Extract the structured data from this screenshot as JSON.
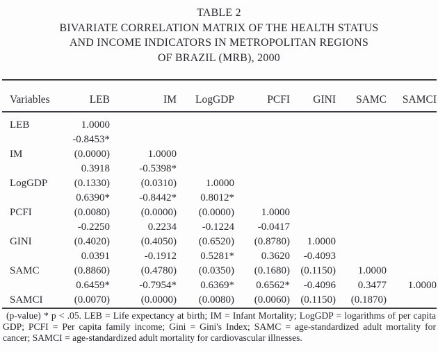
{
  "title": {
    "lines": [
      "TABLE 2",
      "BIVARIATE CORRELATION MATRIX OF THE HEALTH STATUS",
      "AND INCOME INDICATORS IN METROPOLITAN REGIONS",
      "OF BRAZIL (MRB), 2000"
    ]
  },
  "table": {
    "headers": [
      "Variables",
      "LEB",
      "IM",
      "LogGDP",
      "PCFI",
      "GINI",
      "SAMC",
      "SAMCI"
    ],
    "rows": [
      {
        "label": "LEB",
        "cells": [
          "1.0000",
          "",
          "",
          "",
          "",
          "",
          ""
        ]
      },
      {
        "label": "",
        "cells": [
          "-0.8453*",
          "",
          "",
          "",
          "",
          "",
          ""
        ]
      },
      {
        "label": "IM",
        "cells": [
          "(0.0000)",
          "1.0000",
          "",
          "",
          "",
          "",
          ""
        ]
      },
      {
        "label": "",
        "cells": [
          "0.3918",
          "-0.5398*",
          "",
          "",
          "",
          "",
          ""
        ]
      },
      {
        "label": "LogGDP",
        "cells": [
          "(0.1330)",
          "(0.0310)",
          "1.0000",
          "",
          "",
          "",
          ""
        ]
      },
      {
        "label": "",
        "cells": [
          "0.6390*",
          "-0.8442*",
          "0.8012*",
          "",
          "",
          "",
          ""
        ]
      },
      {
        "label": "PCFI",
        "cells": [
          "(0.0080)",
          "(0.0000)",
          "(0.0000)",
          "1.0000",
          "",
          "",
          ""
        ]
      },
      {
        "label": "",
        "cells": [
          "-0.2250",
          "0.2234",
          "-0.1224",
          "-0.0417",
          "",
          "",
          ""
        ]
      },
      {
        "label": "GINI",
        "cells": [
          "(0.4020)",
          "(0.4050)",
          "(0.6520)",
          "(0.8780)",
          "1.0000",
          "",
          ""
        ]
      },
      {
        "label": "",
        "cells": [
          "0.0391",
          "-0.1912",
          "0.5281*",
          "0.3620",
          "-0.4093",
          "",
          ""
        ]
      },
      {
        "label": "SAMC",
        "cells": [
          "(0.8860)",
          "(0.4780)",
          "(0.0350)",
          "(0.1680)",
          "(0.1150)",
          "1.0000",
          ""
        ]
      },
      {
        "label": "",
        "cells": [
          "0.6459*",
          "-0.7954*",
          "0.6369*",
          "0.6562*",
          "-0.4096",
          "0.3477",
          "1.0000"
        ]
      },
      {
        "label": "SAMCI",
        "cells": [
          "(0.0070)",
          "(0.0000)",
          "(0.0080)",
          "(0.0060)",
          "(0.1150)",
          "(0.1870)",
          ""
        ]
      }
    ]
  },
  "footnote": {
    "text": "(p-value) * p < .05. LEB = Life expectancy at birth; IM = Infant Mortality; LogGDP = logarithms of per capita GDP; PCFI = Per capita family income; Gini = Gini's Index; SAMC = age-standardized adult mortality for cancer; SAMCI = age-standardized adult mortality for cardiovascular illnesses."
  },
  "colors": {
    "text": "#2a2a31",
    "background": "#fdfdfd",
    "rule": "#3c3c42"
  }
}
